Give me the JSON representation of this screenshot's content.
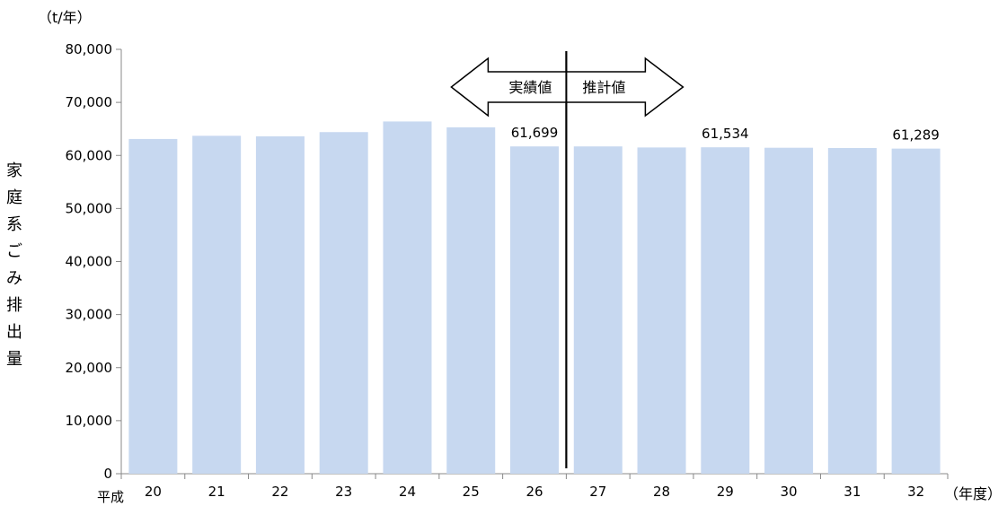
{
  "chart_data": {
    "type": "bar",
    "title": "",
    "unit_label": "（t/年）",
    "ylabel": "家庭系ごみ排出量",
    "xunit_label": "（年度）",
    "era_label": "平成",
    "categories": [
      "20",
      "21",
      "22",
      "23",
      "24",
      "25",
      "26",
      "27",
      "28",
      "29",
      "30",
      "31",
      "32"
    ],
    "values": [
      63100,
      63700,
      63600,
      64400,
      66400,
      65300,
      61699,
      61700,
      61500,
      61534,
      61450,
      61400,
      61289
    ],
    "data_labels": [
      {
        "index": 6,
        "text": "61,699"
      },
      {
        "index": 9,
        "text": "61,534"
      },
      {
        "index": 12,
        "text": "61,289"
      }
    ],
    "ylim": [
      0,
      80000
    ],
    "yticks": [
      0,
      10000,
      20000,
      30000,
      40000,
      50000,
      60000,
      70000,
      80000
    ],
    "ytick_labels": [
      "0",
      "10,000",
      "20,000",
      "30,000",
      "40,000",
      "50,000",
      "60,000",
      "70,000",
      "80,000"
    ],
    "bar_color": "#c7d8f0",
    "grid": false,
    "divider": {
      "after_index": 6,
      "left_label": "実績値",
      "right_label": "推計値"
    }
  }
}
